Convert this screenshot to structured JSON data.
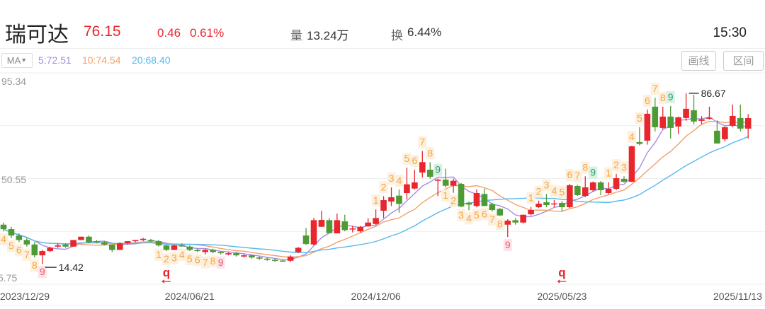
{
  "header": {
    "stock_name": "瑞可达",
    "price": "76.15",
    "change": "0.46",
    "change_pct": "0.61%",
    "volume_label": "量",
    "volume": "13.24万",
    "turnover_label": "换",
    "turnover": "6.44%",
    "time": "15:30"
  },
  "indicator": {
    "selector": "MA",
    "ma5": "5:72.51",
    "ma10": "10:74.54",
    "ma20": "20:68.40"
  },
  "toolbar": {
    "draw_label": "画线",
    "range_label": "区间"
  },
  "colors": {
    "up": "#e8262c",
    "down": "#4e9a34",
    "ma5": "#a98be3",
    "ma10": "#f3a06a",
    "ma20": "#56b9ef",
    "td_orange": "#f4a640",
    "td_green": "#2a9f6a",
    "td_pink": "#e55a6e"
  },
  "chart_data": {
    "type": "candlestick",
    "y_ticks": [
      "95.34",
      "50.55",
      "5.75"
    ],
    "ylim": [
      5.75,
      95.34
    ],
    "grid": true,
    "x_labels": [
      {
        "i": 4,
        "label": "2023/12/29"
      },
      {
        "i": 24,
        "label": "2024/06/21"
      },
      {
        "i": 48,
        "label": "2024/12/06"
      },
      {
        "i": 72,
        "label": "2025/05/23"
      },
      {
        "i": 94,
        "label": "2025/11/13"
      }
    ],
    "ohlc": [
      [
        31.0,
        31.9,
        28.2,
        29.1
      ],
      [
        29.1,
        30.1,
        25.4,
        26.4
      ],
      [
        26.4,
        27.3,
        23.6,
        24.5
      ],
      [
        24.5,
        25.4,
        21.7,
        22.6
      ],
      [
        22.6,
        23.6,
        17.1,
        18.0
      ],
      [
        18.0,
        20.3,
        14.42,
        19.8
      ],
      [
        19.8,
        21.7,
        19.4,
        21.2
      ],
      [
        21.7,
        23.1,
        21.2,
        22.2
      ],
      [
        22.6,
        23.1,
        21.2,
        21.7
      ],
      [
        21.7,
        24.5,
        21.7,
        24.5
      ],
      [
        24.5,
        25.9,
        24.5,
        25.9
      ],
      [
        25.9,
        26.4,
        23.1,
        23.6
      ],
      [
        24.0,
        24.5,
        23.1,
        23.6
      ],
      [
        23.6,
        24.0,
        22.2,
        22.6
      ],
      [
        22.6,
        22.6,
        19.4,
        20.3
      ],
      [
        20.3,
        23.6,
        20.3,
        23.1
      ],
      [
        23.1,
        24.0,
        22.6,
        24.0
      ],
      [
        24.0,
        24.5,
        23.6,
        24.5
      ],
      [
        24.5,
        25.4,
        24.0,
        25.0
      ],
      [
        24.5,
        25.0,
        23.6,
        24.0
      ],
      [
        24.0,
        24.5,
        21.7,
        22.2
      ],
      [
        22.2,
        22.6,
        19.8,
        20.3
      ],
      [
        20.3,
        22.6,
        20.3,
        22.2
      ],
      [
        22.2,
        23.1,
        21.7,
        21.8
      ],
      [
        21.7,
        22.2,
        19.8,
        20.3
      ],
      [
        20.3,
        20.8,
        19.4,
        19.8
      ],
      [
        19.4,
        20.8,
        18.4,
        20.3
      ],
      [
        20.3,
        20.8,
        18.9,
        19.4
      ],
      [
        19.4,
        19.8,
        18.4,
        18.9
      ],
      [
        18.4,
        19.4,
        18.0,
        18.9
      ],
      [
        18.9,
        19.4,
        17.5,
        18.0
      ],
      [
        17.5,
        18.4,
        17.1,
        18.0
      ],
      [
        18.0,
        18.4,
        16.6,
        17.1
      ],
      [
        17.1,
        17.5,
        16.1,
        16.6
      ],
      [
        16.6,
        17.1,
        15.7,
        16.1
      ],
      [
        16.1,
        16.6,
        15.2,
        15.7
      ],
      [
        15.8,
        16.1,
        15.2,
        15.6
      ],
      [
        15.7,
        18.0,
        15.2,
        17.5
      ],
      [
        19.4,
        21.5,
        18.9,
        21.2
      ],
      [
        26.4,
        29.6,
        22.4,
        22.8
      ],
      [
        22.6,
        33.8,
        22.2,
        32.9
      ],
      [
        30.1,
        36.9,
        30.1,
        33.0
      ],
      [
        32.9,
        33.8,
        27.4,
        27.4
      ],
      [
        27.3,
        35.7,
        27.3,
        32.9
      ],
      [
        32.4,
        35.2,
        28.2,
        28.7
      ],
      [
        29.1,
        30.5,
        27.7,
        29.4
      ],
      [
        28.2,
        30.5,
        27.7,
        30.1
      ],
      [
        30.3,
        33.8,
        30.1,
        31.9
      ],
      [
        31.3,
        37.5,
        31.0,
        33.8
      ],
      [
        36.9,
        43.1,
        33.8,
        41.4
      ],
      [
        40.8,
        46.8,
        38.9,
        42.6
      ],
      [
        43.3,
        45.9,
        36.1,
        39.8
      ],
      [
        44.4,
        55.2,
        41.7,
        48.1
      ],
      [
        46.3,
        54.3,
        45.9,
        48.9
      ],
      [
        53.1,
        62.2,
        51.0,
        57.5
      ],
      [
        54.3,
        57.5,
        50.5,
        51.3
      ],
      [
        49.6,
        50.5,
        43.1,
        50.1
      ],
      [
        50.1,
        54.7,
        46.8,
        47.5
      ],
      [
        47.5,
        50.5,
        44.5,
        49.6
      ],
      [
        48.3,
        48.7,
        38.4,
        38.7
      ],
      [
        40.3,
        40.8,
        37.1,
        39.5
      ],
      [
        38.9,
        45.9,
        38.4,
        44.4
      ],
      [
        44.0,
        46.3,
        38.9,
        38.9
      ],
      [
        39.7,
        40.3,
        36.6,
        37.2
      ],
      [
        37.7,
        38.0,
        34.7,
        34.9
      ],
      [
        31.0,
        33.3,
        25.8,
        32.7
      ],
      [
        32.9,
        33.8,
        31.0,
        31.9
      ],
      [
        31.9,
        35.2,
        31.5,
        35.2
      ],
      [
        35.4,
        38.5,
        34.9,
        37.2
      ],
      [
        38.4,
        41.2,
        38.0,
        39.9
      ],
      [
        40.5,
        44.0,
        38.4,
        39.3
      ],
      [
        39.8,
        41.5,
        38.5,
        40.0
      ],
      [
        40.2,
        41.0,
        36.6,
        38.4
      ],
      [
        38.4,
        48.3,
        38.0,
        47.7
      ],
      [
        47.4,
        47.8,
        43.2,
        43.5
      ],
      [
        43.2,
        51.5,
        42.6,
        46.8
      ],
      [
        45.6,
        49.3,
        45.0,
        48.9
      ],
      [
        48.9,
        49.5,
        43.5,
        45.6
      ],
      [
        44.4,
        49.0,
        43.9,
        46.2
      ],
      [
        46.2,
        52.5,
        45.6,
        50.7
      ],
      [
        50.4,
        51.5,
        48.8,
        49.2
      ],
      [
        49.2,
        64.5,
        49.0,
        64.2
      ],
      [
        66.0,
        72.3,
        64.6,
        65.2
      ],
      [
        66.6,
        79.8,
        64.9,
        78.0
      ],
      [
        81.0,
        84.8,
        70.5,
        72.3
      ],
      [
        72.0,
        81.0,
        71.4,
        76.8
      ],
      [
        76.8,
        81.3,
        67.5,
        72.0
      ],
      [
        72.6,
        76.8,
        69.3,
        76.5
      ],
      [
        76.2,
        86.67,
        75.0,
        80.1
      ],
      [
        79.5,
        86.0,
        73.5,
        74.7
      ],
      [
        75.0,
        77.0,
        73.5,
        75.6
      ],
      [
        76.0,
        81.0,
        75.5,
        76.3
      ],
      [
        70.8,
        75.2,
        65.4,
        65.4
      ],
      [
        67.2,
        72.6,
        66.3,
        72.3
      ],
      [
        72.9,
        81.9,
        72.3,
        77.1
      ],
      [
        76.2,
        81.9,
        70.5,
        71.7
      ],
      [
        71.7,
        77.8,
        67.5,
        76.15
      ]
    ],
    "ma_periods": [
      5,
      10,
      20
    ],
    "annotations": {
      "high": {
        "i": 88,
        "label": "86.67"
      },
      "low": {
        "i": 5,
        "label": "14.42"
      }
    },
    "td_sequence": [
      {
        "i": 0,
        "n": "4",
        "c": "orange",
        "pos": "below"
      },
      {
        "i": 1,
        "n": "5",
        "c": "orange",
        "pos": "below"
      },
      {
        "i": 2,
        "n": "6",
        "c": "orange",
        "pos": "below"
      },
      {
        "i": 3,
        "n": "7",
        "c": "orange",
        "pos": "below"
      },
      {
        "i": 4,
        "n": "8",
        "c": "orange",
        "pos": "below"
      },
      {
        "i": 5,
        "n": "9",
        "c": "pink",
        "pos": "below"
      },
      {
        "i": 20,
        "n": "1",
        "c": "orange",
        "pos": "below"
      },
      {
        "i": 21,
        "n": "2",
        "c": "orange",
        "pos": "below"
      },
      {
        "i": 22,
        "n": "3",
        "c": "orange",
        "pos": "below"
      },
      {
        "i": 23,
        "n": "4",
        "c": "orange",
        "pos": "below"
      },
      {
        "i": 24,
        "n": "5",
        "c": "orange",
        "pos": "below"
      },
      {
        "i": 25,
        "n": "6",
        "c": "orange",
        "pos": "below"
      },
      {
        "i": 26,
        "n": "7",
        "c": "orange",
        "pos": "below"
      },
      {
        "i": 27,
        "n": "8",
        "c": "orange",
        "pos": "below"
      },
      {
        "i": 28,
        "n": "9",
        "c": "pink",
        "pos": "below"
      },
      {
        "i": 48,
        "n": "1",
        "c": "orange",
        "pos": "above"
      },
      {
        "i": 49,
        "n": "2",
        "c": "orange",
        "pos": "above"
      },
      {
        "i": 50,
        "n": "3",
        "c": "orange",
        "pos": "above"
      },
      {
        "i": 51,
        "n": "4",
        "c": "orange",
        "pos": "above"
      },
      {
        "i": 52,
        "n": "5",
        "c": "orange",
        "pos": "above"
      },
      {
        "i": 53,
        "n": "6",
        "c": "orange",
        "pos": "above"
      },
      {
        "i": 54,
        "n": "7",
        "c": "orange",
        "pos": "above"
      },
      {
        "i": 55,
        "n": "8",
        "c": "orange",
        "pos": "above"
      },
      {
        "i": 56,
        "n": "9",
        "c": "green",
        "pos": "above"
      },
      {
        "i": 57,
        "n": "1",
        "c": "orange",
        "pos": "below"
      },
      {
        "i": 58,
        "n": "2",
        "c": "orange",
        "pos": "below"
      },
      {
        "i": 59,
        "n": "3",
        "c": "orange",
        "pos": "below"
      },
      {
        "i": 60,
        "n": "4",
        "c": "orange",
        "pos": "below"
      },
      {
        "i": 61,
        "n": "5",
        "c": "orange",
        "pos": "below"
      },
      {
        "i": 62,
        "n": "6",
        "c": "orange",
        "pos": "below"
      },
      {
        "i": 63,
        "n": "7",
        "c": "orange",
        "pos": "below"
      },
      {
        "i": 64,
        "n": "8",
        "c": "orange",
        "pos": "below"
      },
      {
        "i": 65,
        "n": "9",
        "c": "pink",
        "pos": "below"
      },
      {
        "i": 68,
        "n": "1",
        "c": "orange",
        "pos": "above"
      },
      {
        "i": 69,
        "n": "2",
        "c": "orange",
        "pos": "above"
      },
      {
        "i": 70,
        "n": "3",
        "c": "orange",
        "pos": "above"
      },
      {
        "i": 71,
        "n": "4",
        "c": "orange",
        "pos": "above"
      },
      {
        "i": 72,
        "n": "5",
        "c": "orange",
        "pos": "above"
      },
      {
        "i": 73,
        "n": "6",
        "c": "orange",
        "pos": "above"
      },
      {
        "i": 74,
        "n": "7",
        "c": "orange",
        "pos": "above"
      },
      {
        "i": 75,
        "n": "8",
        "c": "orange",
        "pos": "above"
      },
      {
        "i": 76,
        "n": "9",
        "c": "green",
        "pos": "above"
      },
      {
        "i": 78,
        "n": "1",
        "c": "orange",
        "pos": "above"
      },
      {
        "i": 79,
        "n": "2",
        "c": "orange",
        "pos": "above"
      },
      {
        "i": 80,
        "n": "3",
        "c": "orange",
        "pos": "above"
      },
      {
        "i": 81,
        "n": "4",
        "c": "orange",
        "pos": "above"
      },
      {
        "i": 82,
        "n": "5",
        "c": "orange",
        "pos": "above"
      },
      {
        "i": 83,
        "n": "6",
        "c": "orange",
        "pos": "above"
      },
      {
        "i": 84,
        "n": "7",
        "c": "orange",
        "pos": "above"
      },
      {
        "i": 85,
        "n": "8",
        "c": "orange",
        "pos": "above"
      },
      {
        "i": 86,
        "n": "9",
        "c": "green",
        "pos": "above"
      }
    ],
    "q_markers": [
      {
        "i": 21,
        "label": "q"
      },
      {
        "i": 72,
        "label": "q"
      }
    ]
  }
}
